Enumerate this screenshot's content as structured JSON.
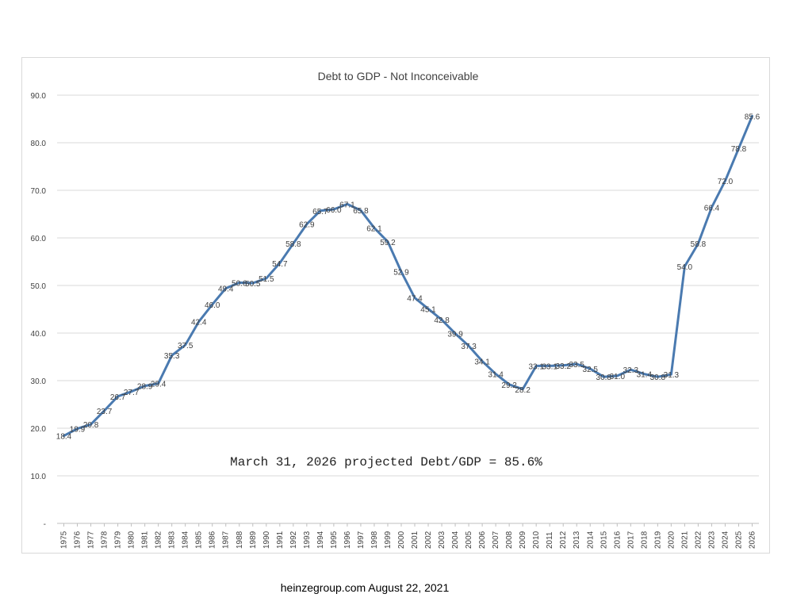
{
  "chart_data": {
    "type": "line",
    "title": "Debt to GDP - Not Inconceivable",
    "xlabel": "",
    "ylabel": "",
    "ylim": [
      0,
      90
    ],
    "yticks": [
      "-",
      "10.0",
      "20.0",
      "30.0",
      "40.0",
      "50.0",
      "60.0",
      "70.0",
      "80.0",
      "90.0"
    ],
    "grid": true,
    "legend": "none",
    "line_color": "#4a7ab0",
    "x": [
      "1975",
      "1976",
      "1977",
      "1978",
      "1979",
      "1980",
      "1981",
      "1982",
      "1983",
      "1984",
      "1985",
      "1986",
      "1987",
      "1988",
      "1989",
      "1990",
      "1991",
      "1992",
      "1993",
      "1994",
      "1995",
      "1996",
      "1997",
      "1998",
      "1999",
      "2000",
      "2001",
      "2002",
      "2003",
      "2004",
      "2005",
      "2006",
      "2007",
      "2008",
      "2009",
      "2010",
      "2011",
      "2012",
      "2013",
      "2014",
      "2015",
      "2016",
      "2017",
      "2018",
      "2019",
      "2020",
      "2021",
      "2022",
      "2023",
      "2024",
      "2025",
      "2026"
    ],
    "series": [
      {
        "values": [
          18.4,
          19.9,
          20.8,
          23.7,
          26.7,
          27.7,
          28.9,
          29.4,
          35.3,
          37.5,
          42.4,
          46.0,
          49.4,
          50.6,
          50.5,
          51.5,
          54.7,
          58.8,
          62.9,
          65.7,
          66.0,
          67.1,
          65.8,
          62.1,
          59.2,
          52.9,
          47.4,
          45.1,
          42.8,
          39.9,
          37.3,
          34.1,
          31.4,
          29.2,
          28.2,
          33.1,
          33.1,
          33.2,
          33.5,
          32.5,
          30.8,
          31.0,
          32.3,
          31.4,
          30.8,
          31.3,
          54.0,
          58.8,
          66.4,
          72.0,
          78.8,
          85.6
        ],
        "labels": [
          "18.4",
          "19.9",
          "20.8",
          "23.7",
          "26.7",
          "27.7",
          "28.9",
          "29.4",
          "35.3",
          "37.5",
          "42.4",
          "46.0",
          "49.4",
          "50.6",
          "50.5",
          "51.5",
          "54.7",
          "58.8",
          "62.9",
          "65.7",
          "66.0",
          "67.1",
          "65.8",
          "62.1",
          "59.2",
          "52.9",
          "47.4",
          "45.1",
          "42.8",
          "39.9",
          "37.3",
          "34.1",
          "31.4",
          "29.2",
          "28.2",
          "33.1",
          "33.1",
          "33.2",
          "33.5",
          "32.5",
          "30.8",
          "31.0",
          "32.3",
          "31.4",
          "30.8",
          "31.3",
          "54.0",
          "58.8",
          "66.4",
          "72.0",
          "78.8",
          "85.6"
        ]
      }
    ],
    "annotation": "March 31, 2026 projected Debt/GDP = 85.6%"
  },
  "footer": "heinzegroup.com  August 22, 2021"
}
